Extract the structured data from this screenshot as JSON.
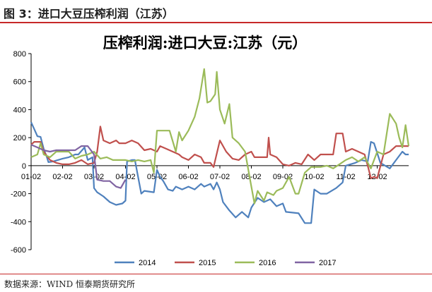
{
  "header": {
    "caption": "图 3：进口大豆压榨利润（江苏）"
  },
  "footer": {
    "source": "数据来源：WIND 恒泰期货研究所"
  },
  "chart_data": {
    "type": "line",
    "title": "压榨利润:进口大豆:江苏（元）",
    "xlabel": "",
    "ylabel": "",
    "ylim": [
      -600,
      800
    ],
    "yticks": [
      -600,
      -400,
      -200,
      0,
      200,
      400,
      600,
      800
    ],
    "xlim": [
      0,
      12
    ],
    "xticks": [
      {
        "label": "01-02",
        "x": 0
      },
      {
        "label": "02-02",
        "x": 1
      },
      {
        "label": "03-02",
        "x": 2
      },
      {
        "label": "04-02",
        "x": 3
      },
      {
        "label": "05-02",
        "x": 4
      },
      {
        "label": "06-02",
        "x": 5
      },
      {
        "label": "07-02",
        "x": 6
      },
      {
        "label": "08-02",
        "x": 7
      },
      {
        "label": "09-02",
        "x": 8
      },
      {
        "label": "10-02",
        "x": 9
      },
      {
        "label": "11-02",
        "x": 10
      },
      {
        "label": "12-02",
        "x": 11
      }
    ],
    "legend_position": "bottom",
    "series": [
      {
        "name": "2014",
        "color": "#4f81bd",
        "points": [
          [
            0.0,
            310
          ],
          [
            0.1,
            260
          ],
          [
            0.2,
            210
          ],
          [
            0.3,
            205
          ],
          [
            0.4,
            120
          ],
          [
            0.5,
            60
          ],
          [
            0.55,
            25
          ],
          [
            0.7,
            30
          ],
          [
            1.0,
            50
          ],
          [
            1.2,
            60
          ],
          [
            1.4,
            80
          ],
          [
            1.5,
            80
          ],
          [
            1.7,
            130
          ],
          [
            1.8,
            40
          ],
          [
            1.95,
            60
          ],
          [
            2.0,
            -160
          ],
          [
            2.1,
            -190
          ],
          [
            2.3,
            -220
          ],
          [
            2.5,
            -260
          ],
          [
            2.7,
            -280
          ],
          [
            2.9,
            -270
          ],
          [
            3.0,
            -250
          ],
          [
            3.05,
            30
          ],
          [
            3.2,
            40
          ],
          [
            3.3,
            40
          ],
          [
            3.5,
            -200
          ],
          [
            3.6,
            -180
          ],
          [
            3.9,
            -190
          ],
          [
            4.0,
            -30
          ],
          [
            4.1,
            -80
          ],
          [
            4.2,
            -110
          ],
          [
            4.35,
            -170
          ],
          [
            4.5,
            -180
          ],
          [
            4.6,
            -150
          ],
          [
            4.8,
            -170
          ],
          [
            5.0,
            -150
          ],
          [
            5.2,
            -170
          ],
          [
            5.4,
            -130
          ],
          [
            5.5,
            -150
          ],
          [
            5.7,
            -130
          ],
          [
            5.8,
            -170
          ],
          [
            5.9,
            -120
          ],
          [
            6.0,
            -170
          ],
          [
            6.1,
            -260
          ],
          [
            6.3,
            -320
          ],
          [
            6.5,
            -370
          ],
          [
            6.7,
            -330
          ],
          [
            6.9,
            -370
          ],
          [
            7.0,
            -300
          ],
          [
            7.2,
            -230
          ],
          [
            7.4,
            -260
          ],
          [
            7.6,
            -240
          ],
          [
            7.8,
            -290
          ],
          [
            8.0,
            -270
          ],
          [
            8.1,
            -330
          ],
          [
            8.5,
            -340
          ],
          [
            8.7,
            -410
          ],
          [
            8.9,
            -410
          ],
          [
            9.0,
            -170
          ],
          [
            9.2,
            -200
          ],
          [
            9.4,
            -200
          ],
          [
            9.7,
            -160
          ],
          [
            9.9,
            -120
          ],
          [
            10.0,
            0
          ],
          [
            10.3,
            20
          ],
          [
            10.5,
            40
          ],
          [
            10.7,
            30
          ],
          [
            10.8,
            170
          ],
          [
            10.9,
            160
          ],
          [
            11.0,
            90
          ],
          [
            11.1,
            20
          ],
          [
            11.4,
            -20
          ],
          [
            11.6,
            40
          ],
          [
            11.8,
            100
          ],
          [
            11.9,
            80
          ],
          [
            12.0,
            80
          ]
        ]
      },
      {
        "name": "2015",
        "color": "#c0504d",
        "points": [
          [
            0.0,
            150
          ],
          [
            0.1,
            170
          ],
          [
            0.3,
            170
          ],
          [
            0.4,
            100
          ],
          [
            0.6,
            40
          ],
          [
            0.8,
            20
          ],
          [
            1.0,
            10
          ],
          [
            1.2,
            10
          ],
          [
            1.4,
            20
          ],
          [
            1.6,
            40
          ],
          [
            1.8,
            10
          ],
          [
            2.0,
            20
          ],
          [
            2.1,
            100
          ],
          [
            2.2,
            280
          ],
          [
            2.3,
            180
          ],
          [
            2.5,
            160
          ],
          [
            2.7,
            180
          ],
          [
            2.8,
            160
          ],
          [
            3.0,
            160
          ],
          [
            3.2,
            180
          ],
          [
            3.4,
            160
          ],
          [
            3.6,
            110
          ],
          [
            3.8,
            120
          ],
          [
            4.0,
            100
          ],
          [
            4.1,
            140
          ],
          [
            4.3,
            120
          ],
          [
            4.5,
            100
          ],
          [
            4.7,
            80
          ],
          [
            4.8,
            60
          ],
          [
            5.0,
            40
          ],
          [
            5.2,
            80
          ],
          [
            5.4,
            60
          ],
          [
            5.5,
            20
          ],
          [
            5.7,
            20
          ],
          [
            5.8,
            -10
          ],
          [
            6.0,
            180
          ],
          [
            6.2,
            100
          ],
          [
            6.4,
            50
          ],
          [
            6.6,
            40
          ],
          [
            6.8,
            80
          ],
          [
            7.0,
            100
          ],
          [
            7.1,
            60
          ],
          [
            7.3,
            60
          ],
          [
            7.5,
            60
          ],
          [
            7.55,
            200
          ],
          [
            7.6,
            80
          ],
          [
            7.8,
            60
          ],
          [
            8.0,
            10
          ],
          [
            8.2,
            0
          ],
          [
            8.4,
            20
          ],
          [
            8.6,
            10
          ],
          [
            8.8,
            80
          ],
          [
            9.0,
            40
          ],
          [
            9.2,
            80
          ],
          [
            9.4,
            80
          ],
          [
            9.6,
            80
          ],
          [
            9.7,
            230
          ],
          [
            9.9,
            230
          ],
          [
            10.0,
            100
          ],
          [
            10.2,
            120
          ],
          [
            10.4,
            100
          ],
          [
            10.6,
            80
          ],
          [
            10.7,
            0
          ],
          [
            10.8,
            -90
          ],
          [
            10.9,
            -80
          ],
          [
            11.0,
            -90
          ],
          [
            11.2,
            80
          ],
          [
            11.4,
            100
          ],
          [
            11.6,
            140
          ],
          [
            11.8,
            140
          ],
          [
            12.0,
            140
          ]
        ]
      },
      {
        "name": "2016",
        "color": "#9bbb59",
        "points": [
          [
            0.0,
            60
          ],
          [
            0.2,
            80
          ],
          [
            0.3,
            160
          ],
          [
            0.4,
            80
          ],
          [
            0.6,
            60
          ],
          [
            0.8,
            100
          ],
          [
            1.0,
            100
          ],
          [
            1.2,
            100
          ],
          [
            1.4,
            50
          ],
          [
            1.6,
            70
          ],
          [
            1.8,
            80
          ],
          [
            2.0,
            100
          ],
          [
            2.2,
            50
          ],
          [
            2.4,
            60
          ],
          [
            2.6,
            40
          ],
          [
            2.8,
            40
          ],
          [
            3.0,
            40
          ],
          [
            3.2,
            30
          ],
          [
            3.4,
            40
          ],
          [
            3.6,
            30
          ],
          [
            3.8,
            40
          ],
          [
            3.9,
            -50
          ],
          [
            4.0,
            250
          ],
          [
            4.2,
            250
          ],
          [
            4.4,
            250
          ],
          [
            4.6,
            100
          ],
          [
            4.7,
            240
          ],
          [
            4.8,
            180
          ],
          [
            5.0,
            250
          ],
          [
            5.2,
            350
          ],
          [
            5.35,
            480
          ],
          [
            5.5,
            690
          ],
          [
            5.6,
            450
          ],
          [
            5.7,
            460
          ],
          [
            5.85,
            510
          ],
          [
            5.9,
            670
          ],
          [
            6.0,
            400
          ],
          [
            6.15,
            300
          ],
          [
            6.3,
            440
          ],
          [
            6.4,
            200
          ],
          [
            6.6,
            160
          ],
          [
            6.8,
            100
          ],
          [
            7.0,
            -150
          ],
          [
            7.1,
            -270
          ],
          [
            7.2,
            -180
          ],
          [
            7.4,
            -250
          ],
          [
            7.5,
            -190
          ],
          [
            7.7,
            -210
          ],
          [
            7.8,
            -180
          ],
          [
            8.0,
            -160
          ],
          [
            8.2,
            -80
          ],
          [
            8.4,
            -200
          ],
          [
            8.5,
            -200
          ],
          [
            8.7,
            -50
          ],
          [
            8.9,
            -10
          ],
          [
            9.0,
            -10
          ],
          [
            9.2,
            -10
          ],
          [
            9.4,
            0
          ],
          [
            9.6,
            -20
          ],
          [
            9.8,
            10
          ],
          [
            10.0,
            40
          ],
          [
            10.2,
            60
          ],
          [
            10.4,
            30
          ],
          [
            10.6,
            60
          ],
          [
            10.8,
            -20
          ],
          [
            11.0,
            100
          ],
          [
            11.2,
            80
          ],
          [
            11.4,
            370
          ],
          [
            11.6,
            300
          ],
          [
            11.7,
            200
          ],
          [
            11.8,
            130
          ],
          [
            11.9,
            290
          ],
          [
            12.0,
            140
          ]
        ]
      },
      {
        "name": "2017",
        "color": "#8064a2",
        "points": [
          [
            0.0,
            150
          ],
          [
            0.2,
            130
          ],
          [
            0.4,
            110
          ],
          [
            0.6,
            100
          ],
          [
            0.8,
            110
          ],
          [
            1.0,
            110
          ],
          [
            1.2,
            110
          ],
          [
            1.4,
            110
          ],
          [
            1.6,
            140
          ],
          [
            1.8,
            140
          ],
          [
            2.0,
            80
          ],
          [
            2.1,
            -100
          ],
          [
            2.3,
            -110
          ],
          [
            2.5,
            -110
          ],
          [
            2.7,
            -150
          ],
          [
            2.85,
            -160
          ],
          [
            3.0,
            -100
          ]
        ]
      }
    ]
  }
}
